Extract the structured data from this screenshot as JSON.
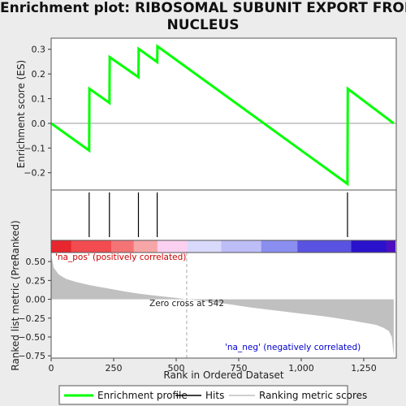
{
  "title_lines": [
    "Enrichment plot: RIBOSOMAL SUBUNIT EXPORT FROM",
    "NUCLEUS"
  ],
  "chart_data": [
    {
      "type": "line",
      "panel": "enrichment",
      "ylabel": "Enrichment score (ES)",
      "ylim": [
        -0.27,
        0.345
      ],
      "yticks": [
        -0.2,
        -0.1,
        0.0,
        0.1,
        0.2,
        0.3
      ],
      "ytick_labels": [
        "−0.2",
        "−0.1",
        "0.0",
        "0.1",
        "0.2",
        "0.3"
      ],
      "xlim": [
        0,
        1380
      ],
      "series": [
        {
          "name": "Enrichment profile",
          "color": "#00ff00",
          "x": [
            0,
            152,
            153,
            233,
            234,
            349,
            350,
            424,
            425,
            1185,
            1186,
            1370
          ],
          "y": [
            0.0,
            -0.11,
            0.14,
            0.083,
            0.268,
            0.187,
            0.302,
            0.248,
            0.312,
            -0.245,
            0.14,
            0.0
          ]
        }
      ]
    },
    {
      "type": "hits",
      "panel": "hits",
      "hit_positions": [
        152,
        233,
        349,
        424,
        1185
      ],
      "color_bar": [
        "#e8262d",
        "#f24b50",
        "#f47476",
        "#f7a6a7",
        "#fbd0f0",
        "#d9d9fb",
        "#bdbdf7",
        "#8a8ef0",
        "#5a52e0",
        "#2a12cc",
        "#4c0fc0"
      ],
      "color_bar_stops": [
        0,
        80,
        240,
        330,
        425,
        545,
        680,
        840,
        985,
        1200,
        1340,
        1375
      ]
    },
    {
      "type": "area",
      "panel": "ranked-metric",
      "ylabel": "Ranked list metric (PreRanked)",
      "xlabel": "Rank in Ordered Dataset",
      "ylim": [
        -0.78,
        0.62
      ],
      "yticks": [
        -0.75,
        -0.5,
        -0.25,
        0.0,
        0.25,
        0.5
      ],
      "ytick_labels": [
        "−0.75",
        "−0.50",
        "−0.25",
        "0.00",
        "0.25",
        "0.50"
      ],
      "xlim": [
        0,
        1380
      ],
      "xticks": [
        0,
        250,
        500,
        750,
        1000,
        1250
      ],
      "xtick_labels": [
        "0",
        "250",
        "500",
        "750",
        "1,000",
        "1,250"
      ],
      "color": "#c0c0c0",
      "x": [
        0,
        10,
        30,
        60,
        100,
        150,
        200,
        250,
        300,
        350,
        400,
        450,
        500,
        542,
        600,
        700,
        800,
        900,
        1000,
        1100,
        1200,
        1250,
        1300,
        1330,
        1350,
        1362,
        1370
      ],
      "y": [
        0.6,
        0.42,
        0.33,
        0.27,
        0.23,
        0.19,
        0.16,
        0.13,
        0.1,
        0.075,
        0.055,
        0.035,
        0.018,
        0.0,
        -0.02,
        -0.06,
        -0.11,
        -0.15,
        -0.19,
        -0.23,
        -0.28,
        -0.31,
        -0.34,
        -0.38,
        -0.42,
        -0.5,
        -0.75
      ],
      "zero_cross": 542,
      "annotations": {
        "zero_cross": "Zero cross at 542",
        "pos": "'na_pos' (positively correlated)",
        "neg": "'na_neg' (negatively correlated)"
      }
    }
  ],
  "legend": [
    "Enrichment profile",
    "Hits",
    "Ranking metric scores"
  ],
  "colors": {
    "profile": "#00ff00",
    "hits": "#000000",
    "metric": "#c0c0c0",
    "pos_text": "#cc0000",
    "neg_text": "#0000cc"
  }
}
